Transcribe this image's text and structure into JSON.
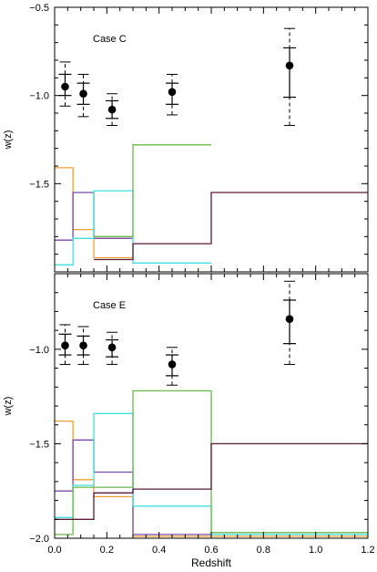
{
  "chart_data": [
    {
      "type": "line",
      "title": "",
      "annotation": "Case C",
      "xlabel": "",
      "ylabel": "w(z)",
      "xlim": [
        0,
        1.2
      ],
      "ylim": [
        -2.0,
        -0.5
      ],
      "xticks": [
        0.0,
        0.2,
        0.4,
        0.6,
        0.8,
        1.0,
        1.2
      ],
      "yticks": [
        -1.5,
        -1.0,
        -0.5
      ],
      "ytick_labels": [
        "−1.5",
        "−1.0",
        "−0.5"
      ],
      "xtick_labels": [],
      "show_xtick_labels": false,
      "points": [
        {
          "x": 0.04,
          "y": -0.95,
          "inner": [
            -1.0,
            -0.88
          ],
          "outer": [
            -1.06,
            -0.81
          ]
        },
        {
          "x": 0.11,
          "y": -0.99,
          "inner": [
            -1.05,
            -0.93
          ],
          "outer": [
            -1.12,
            -0.88
          ]
        },
        {
          "x": 0.22,
          "y": -1.08,
          "inner": [
            -1.13,
            -1.03
          ],
          "outer": [
            -1.17,
            -0.99
          ]
        },
        {
          "x": 0.45,
          "y": -0.98,
          "inner": [
            -1.05,
            -0.93
          ],
          "outer": [
            -1.11,
            -0.88
          ]
        },
        {
          "x": 0.9,
          "y": -0.83,
          "inner": [
            -1.01,
            -0.73
          ],
          "outer": [
            -1.17,
            -0.62
          ]
        }
      ],
      "steps": [
        {
          "color": "#f0a030",
          "edges": [
            0,
            0.07,
            0.15,
            0.3
          ],
          "values": [
            -1.41,
            -1.76,
            -1.92
          ]
        },
        {
          "color": "#7a4aa8",
          "edges": [
            0,
            0.07,
            0.15,
            0.3
          ],
          "values": [
            -1.82,
            -1.55,
            -1.81
          ]
        },
        {
          "color": "#40e0e0",
          "edges": [
            0,
            0.07,
            0.15,
            0.3,
            0.6
          ],
          "values": [
            -1.96,
            -1.81,
            -1.54,
            -1.95
          ]
        },
        {
          "color": "#6ab84a",
          "edges": [
            0.15,
            0.3,
            0.6
          ],
          "values": [
            -1.8,
            -1.28
          ]
        },
        {
          "color": "#5a1a3a",
          "edges": [
            0.15,
            0.3,
            0.6,
            1.2
          ],
          "values": [
            -1.93,
            -1.84,
            -1.55
          ]
        }
      ]
    },
    {
      "type": "line",
      "title": "",
      "annotation": "Case E",
      "xlabel": "Redshift",
      "ylabel": "w(z)",
      "xlim": [
        0,
        1.2
      ],
      "ylim": [
        -2.0,
        -0.6
      ],
      "xticks": [
        0.0,
        0.2,
        0.4,
        0.6,
        0.8,
        1.0,
        1.2
      ],
      "yticks": [
        -2.0,
        -1.5,
        -1.0
      ],
      "ytick_labels": [
        "−2.0",
        "−1.5",
        "−1.0"
      ],
      "xtick_labels": [
        "0.0",
        "0.2",
        "0.4",
        "0.6",
        "0.8",
        "1.0",
        "1.2"
      ],
      "show_xtick_labels": true,
      "points": [
        {
          "x": 0.04,
          "y": -0.98,
          "inner": [
            -1.03,
            -0.92
          ],
          "outer": [
            -1.08,
            -0.87
          ]
        },
        {
          "x": 0.11,
          "y": -0.98,
          "inner": [
            -1.03,
            -0.93
          ],
          "outer": [
            -1.08,
            -0.88
          ]
        },
        {
          "x": 0.22,
          "y": -0.99,
          "inner": [
            -1.04,
            -0.95
          ],
          "outer": [
            -1.08,
            -0.91
          ]
        },
        {
          "x": 0.45,
          "y": -1.08,
          "inner": [
            -1.14,
            -1.03
          ],
          "outer": [
            -1.19,
            -0.99
          ]
        },
        {
          "x": 0.9,
          "y": -0.84,
          "inner": [
            -0.97,
            -0.74
          ],
          "outer": [
            -1.08,
            -0.64
          ]
        }
      ],
      "steps": [
        {
          "color": "#f0a030",
          "edges": [
            0,
            0.07,
            0.15,
            0.3,
            0.6,
            1.2
          ],
          "values": [
            -1.38,
            -1.69,
            -1.78,
            -1.99,
            -1.99
          ]
        },
        {
          "color": "#7a4aa8",
          "edges": [
            0,
            0.07,
            0.15,
            0.3,
            0.6
          ],
          "values": [
            -1.75,
            -1.48,
            -1.65,
            -1.98
          ]
        },
        {
          "color": "#40e0e0",
          "edges": [
            0,
            0.07,
            0.15,
            0.3,
            0.6,
            1.2
          ],
          "values": [
            -1.89,
            -1.72,
            -1.34,
            -1.83,
            -1.98
          ]
        },
        {
          "color": "#6ab84a",
          "edges": [
            0,
            0.07,
            0.15,
            0.3,
            0.6,
            1.2
          ],
          "values": [
            -1.98,
            -1.73,
            -1.73,
            -1.22,
            -1.97
          ]
        },
        {
          "color": "#5a1a3a",
          "edges": [
            0,
            0.07,
            0.15,
            0.3,
            0.6,
            1.2
          ],
          "values": [
            -1.9,
            -1.9,
            -1.76,
            -1.74,
            -1.5
          ]
        }
      ]
    }
  ]
}
